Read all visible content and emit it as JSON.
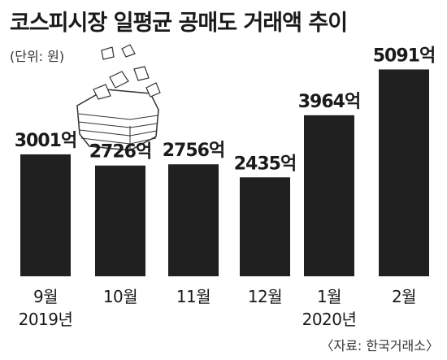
{
  "title": "코스피시장 일평균 공매도 거래액 추이",
  "unit": "(단위: 원)",
  "source": "〈자료: 한국거래소〉",
  "chart_data": {
    "type": "bar",
    "categories": [
      "9월",
      "10월",
      "11월",
      "12월",
      "1월",
      "2월"
    ],
    "year_labels": [
      "2019년",
      "",
      "",
      "",
      "2020년",
      ""
    ],
    "values": [
      3001,
      2726,
      2756,
      2435,
      3964,
      5091
    ],
    "value_labels": [
      "3001억",
      "2726억",
      "2756억",
      "2435억",
      "3964억",
      "5091억"
    ],
    "bar_color": "#202020",
    "ylim": [
      0,
      5600
    ]
  }
}
